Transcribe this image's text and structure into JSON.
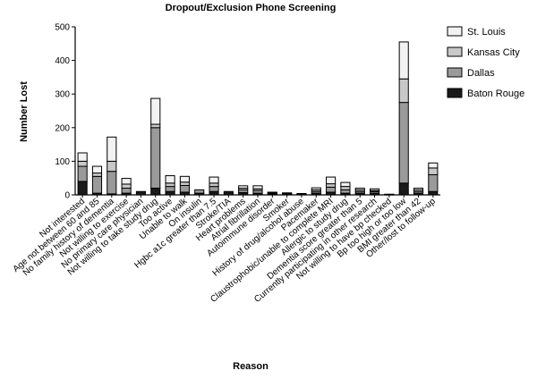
{
  "chart_data": {
    "type": "bar",
    "stacked": true,
    "title": "Dropout/Exclusion Phone Screening",
    "xlabel": "Reason",
    "ylabel": "Number Lost",
    "ylim": [
      0,
      500
    ],
    "yticks": [
      0,
      100,
      200,
      300,
      400,
      500
    ],
    "legend_position": "top-right",
    "categories": [
      "Not interested",
      "Age not between 60 and 85",
      "No family history of dementia",
      "Not willing to exercise",
      "No primary care physician",
      "Not willing to take study drug",
      "Too active",
      "Unable to walk",
      "On insulin",
      "Hgbc a1c greater than 7.5",
      "Stroke/TIA",
      "Heart problems",
      "Atrial fibrillation",
      "Autoimmune disorder",
      "Smoker",
      "History of drug/alcohol abuse",
      "Pacemaker",
      "Claustrophobic/unable to complete MRI",
      "Allergic to study drug",
      "Dementia score greater than 5",
      "Currently participating in other research",
      "Not willing to have bp checked",
      "Bp too high or too low",
      "BMI greater than 42",
      "Other/lost to follow-up"
    ],
    "series": [
      {
        "name": "Baton Rouge",
        "color": "#1a1a1a",
        "values": [
          40,
          5,
          3,
          5,
          10,
          20,
          10,
          8,
          5,
          10,
          10,
          7,
          5,
          3,
          2,
          2,
          5,
          8,
          5,
          5,
          5,
          1,
          35,
          5,
          10
        ]
      },
      {
        "name": "Dallas",
        "color": "#9a9a9a",
        "values": [
          45,
          50,
          67,
          15,
          0,
          180,
          15,
          20,
          10,
          15,
          0,
          8,
          8,
          2,
          2,
          1,
          5,
          15,
          10,
          5,
          5,
          0,
          240,
          5,
          50
        ]
      },
      {
        "name": "Kansas City",
        "color": "#c8c8c8",
        "values": [
          15,
          10,
          30,
          12,
          0,
          10,
          10,
          10,
          0,
          10,
          0,
          5,
          5,
          1,
          1,
          0,
          5,
          10,
          10,
          5,
          3,
          0,
          70,
          5,
          20
        ]
      },
      {
        "name": "St. Louis",
        "color": "#f2f2f2",
        "values": [
          25,
          20,
          72,
          17,
          0,
          77,
          22,
          17,
          0,
          18,
          0,
          7,
          9,
          2,
          1,
          1,
          6,
          20,
          12,
          5,
          5,
          1,
          110,
          5,
          15
        ]
      }
    ]
  }
}
